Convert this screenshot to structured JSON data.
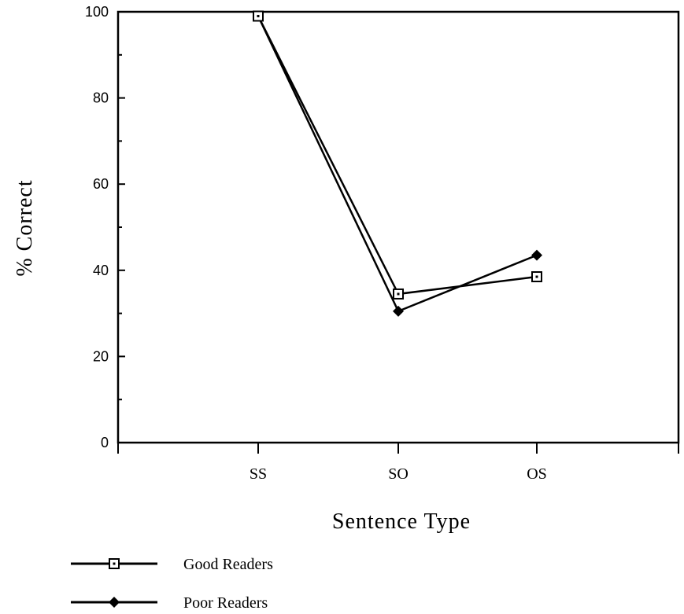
{
  "chart_data": {
    "type": "line",
    "title": "",
    "xlabel": "Sentence Type",
    "ylabel": "% Correct",
    "categories": [
      "SS",
      "SO",
      "OS"
    ],
    "ylim": [
      0,
      100
    ],
    "yticks": [
      0,
      20,
      40,
      60,
      80,
      100
    ],
    "grid": false,
    "legend_position": "bottom-left",
    "series": [
      {
        "name": "Good Readers",
        "marker": "open-square",
        "color": "#000000",
        "values": [
          99,
          34.5,
          38.5
        ]
      },
      {
        "name": "Poor Readers",
        "marker": "filled-diamond",
        "color": "#000000",
        "values": [
          99,
          30.5,
          43.5
        ]
      }
    ]
  }
}
